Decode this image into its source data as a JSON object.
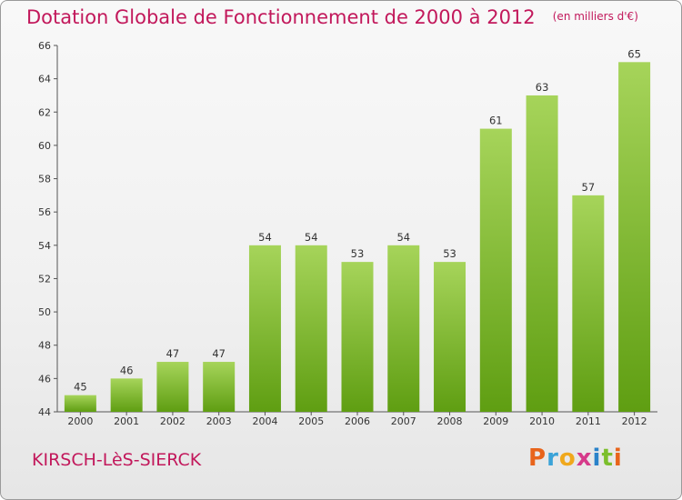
{
  "title": "Dotation Globale de Fonctionnement de 2000 à 2012",
  "subtitle": "(en milliers d'€)",
  "commune": "KIRSCH-LèS-SIERCK",
  "brand": {
    "letters": [
      "P",
      "r",
      "o",
      "x",
      "i",
      "t",
      "i"
    ],
    "colors": [
      "#e8641b",
      "#3ba3d8",
      "#f0a81c",
      "#d63a8a",
      "#2a82c9",
      "#7cbf2c",
      "#e8641b"
    ]
  },
  "colors": {
    "bar_light": "#a6d45a",
    "bar_dark": "#5f9e12",
    "title": "#c2185b"
  },
  "chart_data": {
    "type": "bar",
    "categories": [
      "2000",
      "2001",
      "2002",
      "2003",
      "2004",
      "2005",
      "2006",
      "2007",
      "2008",
      "2009",
      "2010",
      "2011",
      "2012"
    ],
    "values": [
      45,
      46,
      47,
      47,
      54,
      54,
      53,
      54,
      53,
      61,
      63,
      57,
      65
    ],
    "data_labels": [
      "45",
      "46",
      "47",
      "47",
      "54",
      "54",
      "53",
      "54",
      "53",
      "61",
      "63",
      "57",
      "65"
    ],
    "title": "Dotation Globale de Fonctionnement de 2000 à 2012",
    "ylim": [
      44,
      66
    ],
    "yticks": [
      "44",
      "46",
      "48",
      "50",
      "52",
      "54",
      "56",
      "58",
      "60",
      "62",
      "64",
      "66"
    ],
    "grid": false,
    "legend": "none"
  }
}
